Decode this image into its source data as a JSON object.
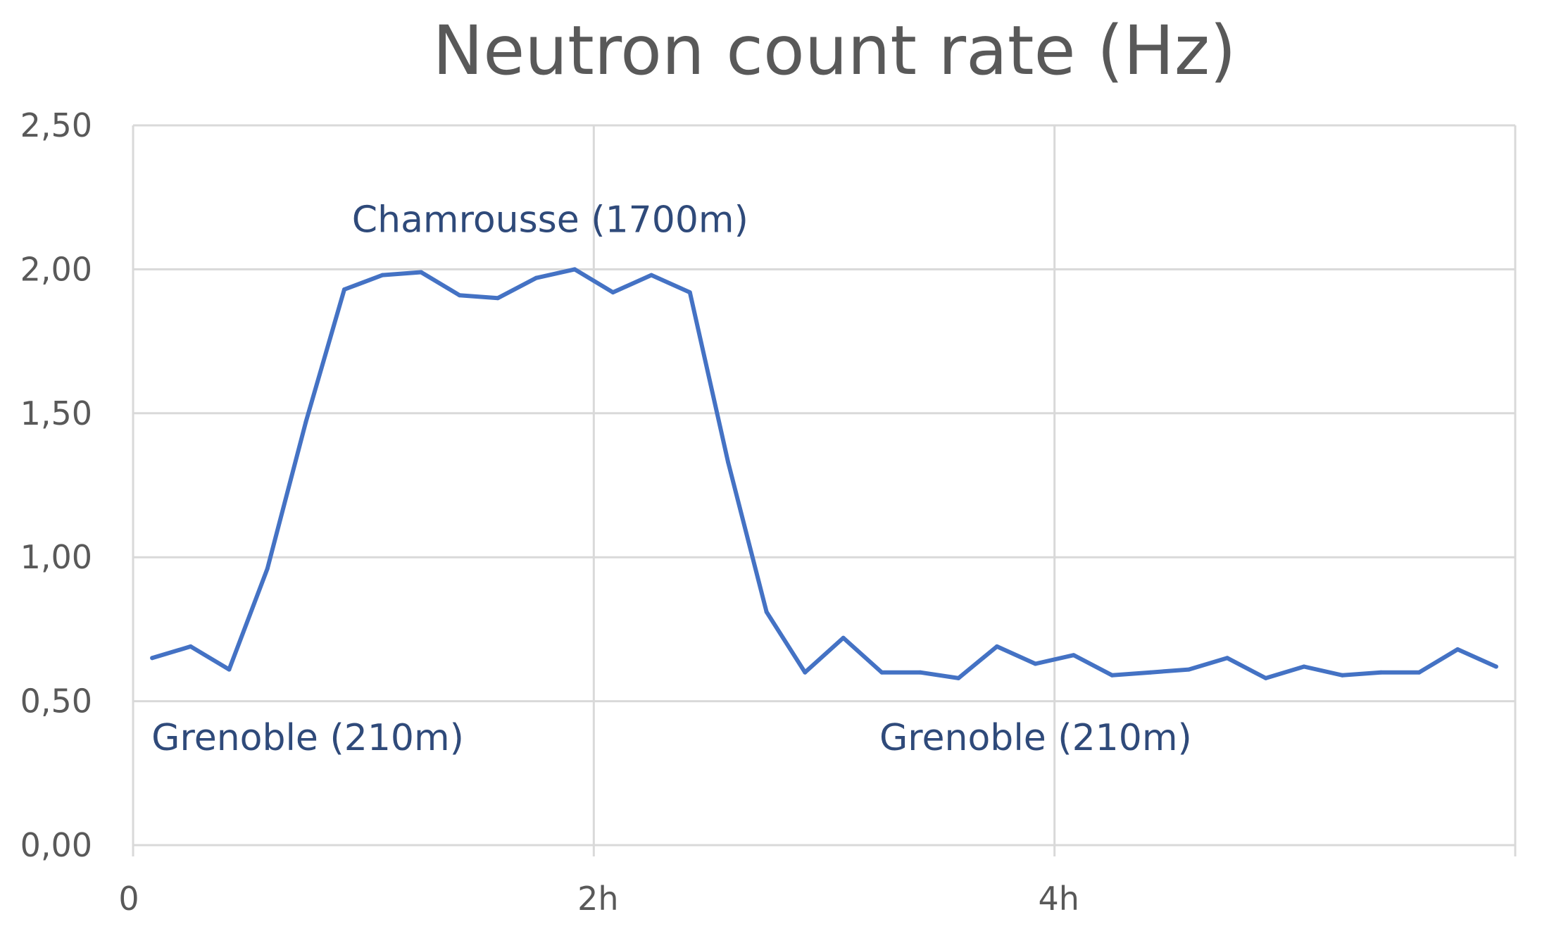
{
  "chart_data": {
    "type": "line",
    "title": "Neutron count rate (Hz)",
    "xlabel": "",
    "ylabel": "",
    "ylim": [
      0,
      2.5
    ],
    "xlim": [
      0,
      6
    ],
    "grid": true,
    "y_ticks": [
      {
        "value": 0,
        "label": "0,00"
      },
      {
        "value": 0.5,
        "label": "0,50"
      },
      {
        "value": 1,
        "label": "1,00"
      },
      {
        "value": 1.5,
        "label": "1,50"
      },
      {
        "value": 2,
        "label": "2,00"
      },
      {
        "value": 2.5,
        "label": "2,50"
      }
    ],
    "x_ticks": [
      {
        "value": 0,
        "label": "0"
      },
      {
        "value": 2,
        "label": "2h"
      },
      {
        "value": 4,
        "label": "4h"
      }
    ],
    "x_gridlines": [
      0,
      2,
      4,
      6
    ],
    "series": [
      {
        "color": "#4472c4",
        "points": [
          {
            "x": 0.083,
            "y": 0.65
          },
          {
            "x": 0.25,
            "y": 0.69
          },
          {
            "x": 0.417,
            "y": 0.61
          },
          {
            "x": 0.583,
            "y": 0.96
          },
          {
            "x": 0.75,
            "y": 1.47
          },
          {
            "x": 0.917,
            "y": 1.93
          },
          {
            "x": 1.083,
            "y": 1.98
          },
          {
            "x": 1.25,
            "y": 1.99
          },
          {
            "x": 1.417,
            "y": 1.91
          },
          {
            "x": 1.583,
            "y": 1.9
          },
          {
            "x": 1.75,
            "y": 1.97
          },
          {
            "x": 1.917,
            "y": 2.0
          },
          {
            "x": 2.083,
            "y": 1.92
          },
          {
            "x": 2.25,
            "y": 1.98
          },
          {
            "x": 2.417,
            "y": 1.92
          },
          {
            "x": 2.583,
            "y": 1.33
          },
          {
            "x": 2.75,
            "y": 0.81
          },
          {
            "x": 2.917,
            "y": 0.6
          },
          {
            "x": 3.083,
            "y": 0.72
          },
          {
            "x": 3.25,
            "y": 0.6
          },
          {
            "x": 3.417,
            "y": 0.6
          },
          {
            "x": 3.583,
            "y": 0.58
          },
          {
            "x": 3.75,
            "y": 0.69
          },
          {
            "x": 3.917,
            "y": 0.63
          },
          {
            "x": 4.083,
            "y": 0.66
          },
          {
            "x": 4.25,
            "y": 0.59
          },
          {
            "x": 4.417,
            "y": 0.6
          },
          {
            "x": 4.583,
            "y": 0.61
          },
          {
            "x": 4.75,
            "y": 0.65
          },
          {
            "x": 4.917,
            "y": 0.58
          },
          {
            "x": 5.083,
            "y": 0.62
          },
          {
            "x": 5.25,
            "y": 0.59
          },
          {
            "x": 5.417,
            "y": 0.6
          },
          {
            "x": 5.583,
            "y": 0.6
          },
          {
            "x": 5.75,
            "y": 0.68
          },
          {
            "x": 5.917,
            "y": 0.62
          }
        ]
      }
    ],
    "annotations": [
      {
        "text": "Chamrousse (1700m)",
        "x": 0.95,
        "y": 2.13
      },
      {
        "text": "Grenoble (210m)",
        "x": 0.08,
        "y": 0.33
      },
      {
        "text": "Grenoble (210m)",
        "x": 3.24,
        "y": 0.33
      }
    ]
  }
}
